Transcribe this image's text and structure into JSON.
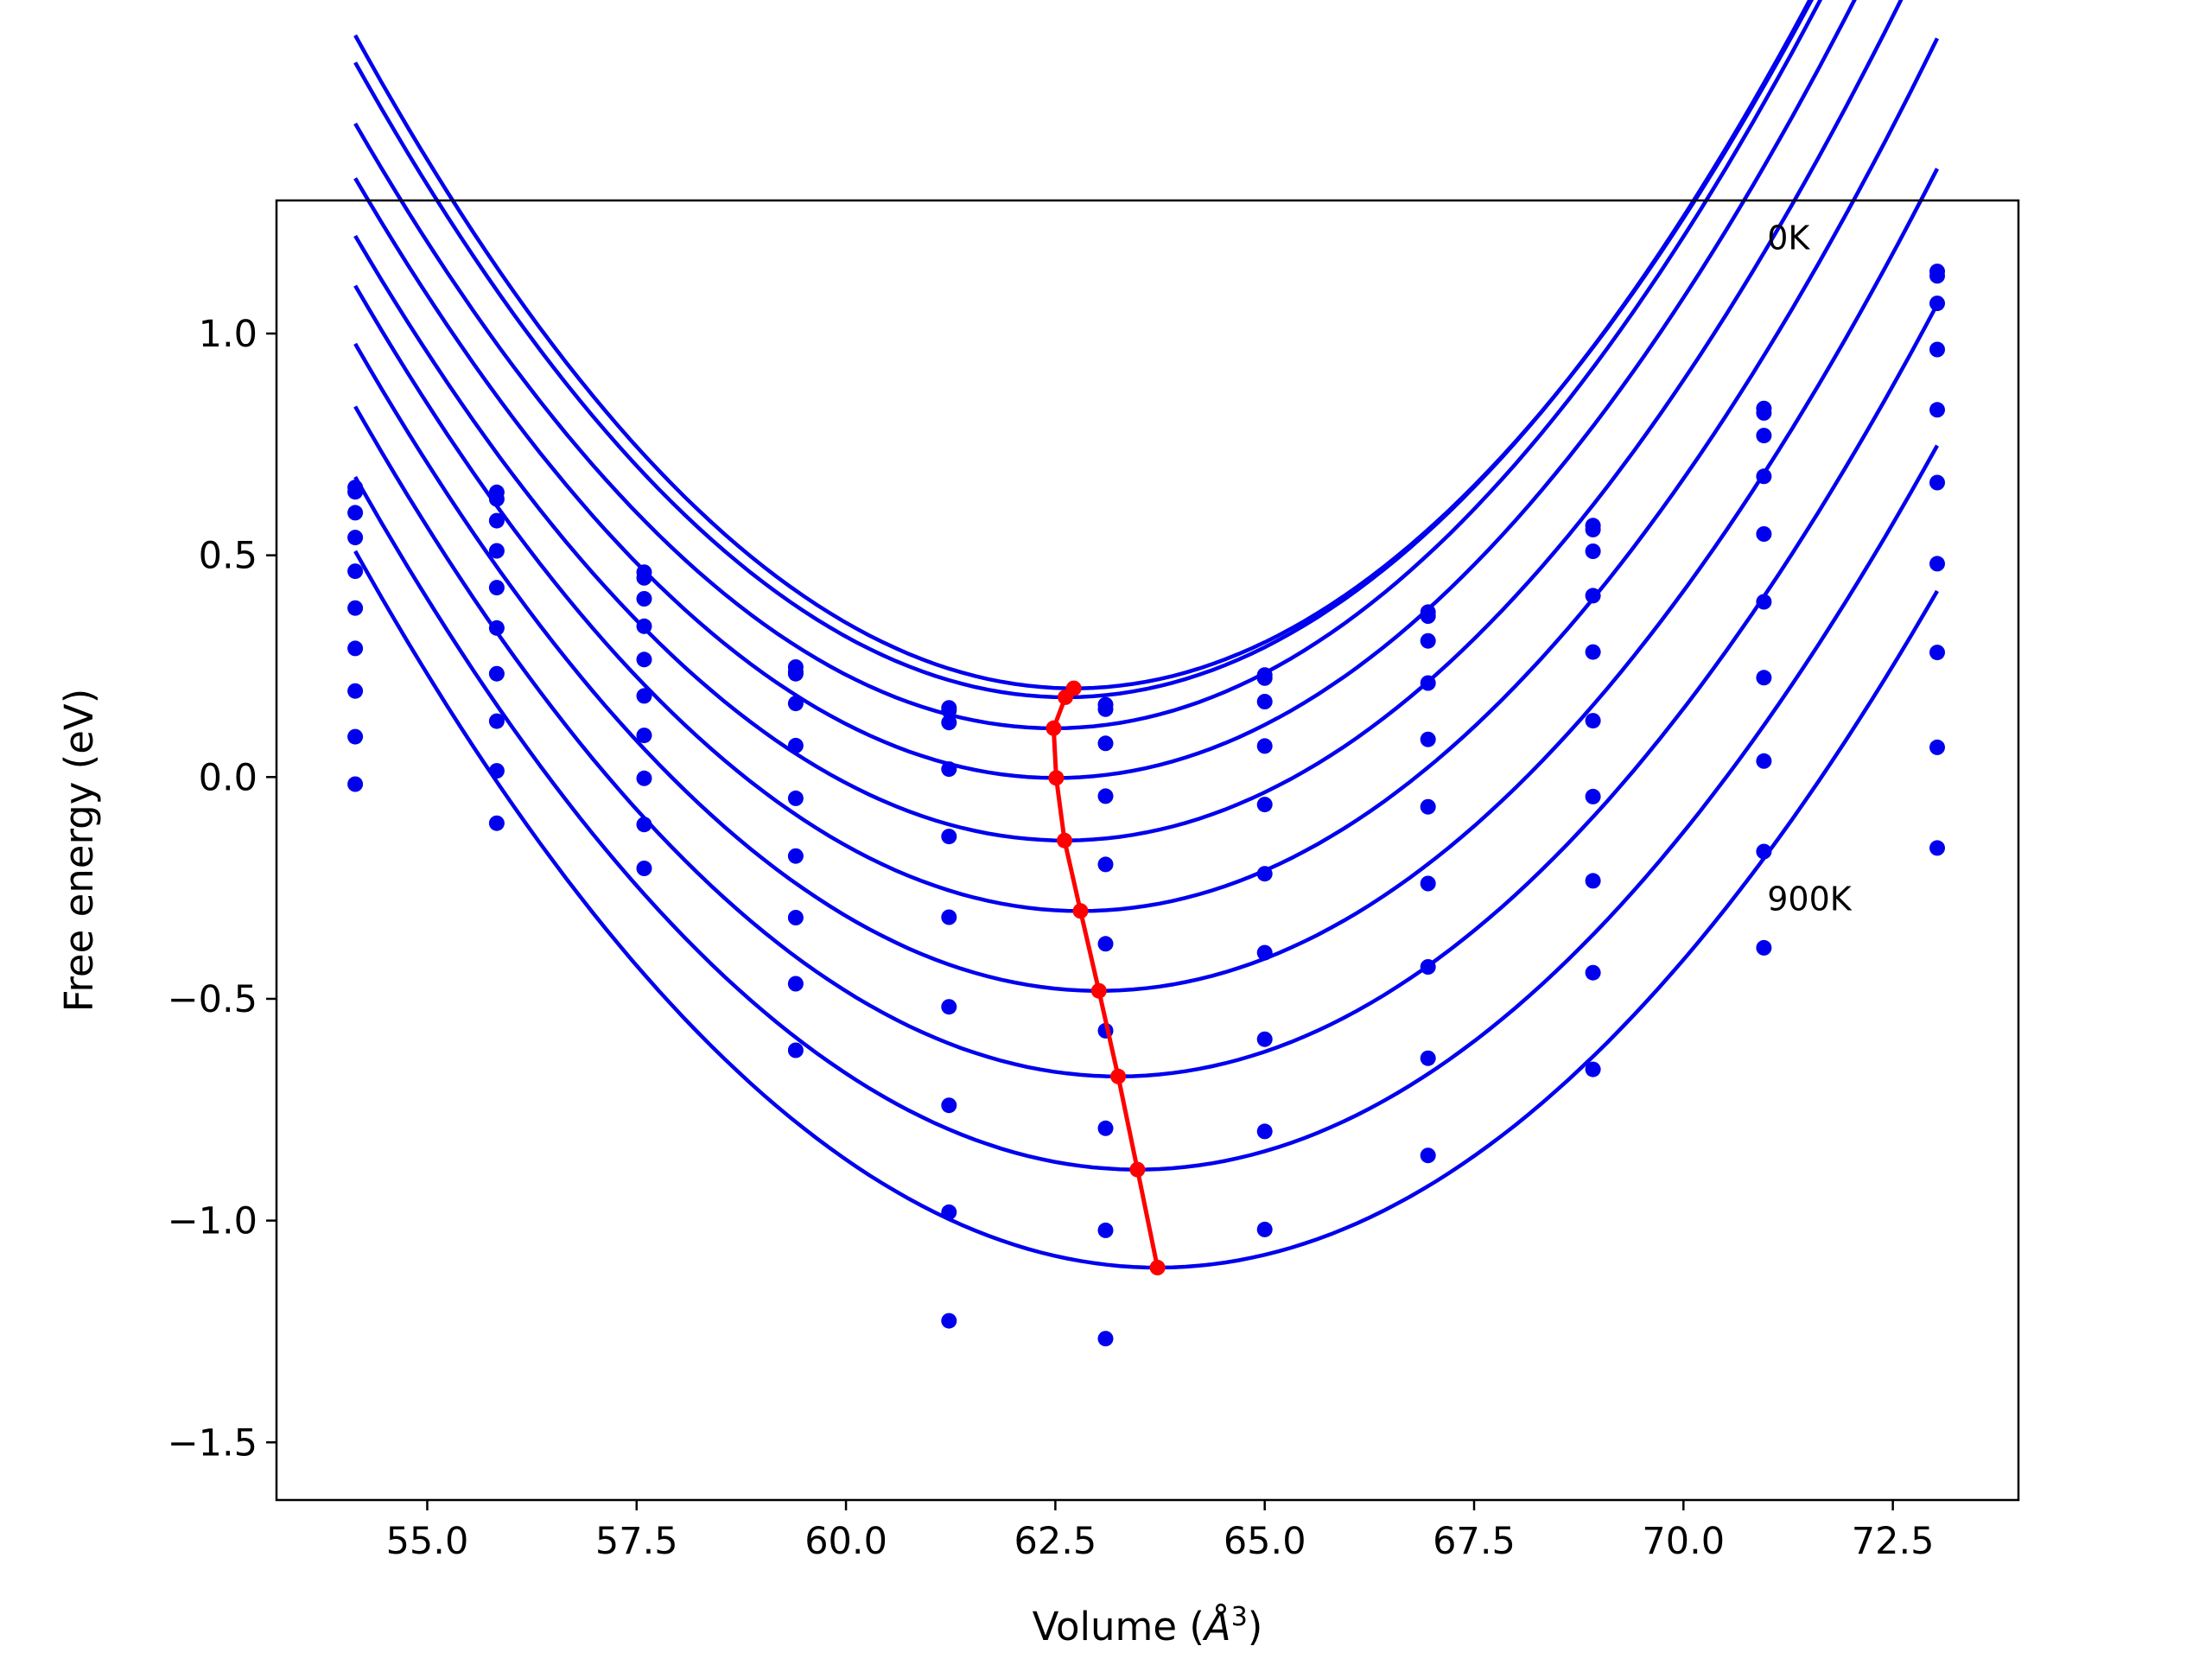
{
  "chart_data": {
    "type": "line",
    "xlabel": "Volume (",
    "xlabel_unit": "Å",
    "xlabel_exp": "3",
    "xlabel_close": ")",
    "ylabel": "Free energy (eV)",
    "xlim": [
      53.2,
      74.0
    ],
    "ylim": [
      -1.63,
      1.3
    ],
    "xticks": [
      55.0,
      57.5,
      60.0,
      62.5,
      65.0,
      67.5,
      70.0,
      72.5
    ],
    "xtick_labels": [
      "55.0",
      "57.5",
      "60.0",
      "62.5",
      "65.0",
      "67.5",
      "70.0",
      "72.5"
    ],
    "yticks": [
      -1.5,
      -1.0,
      -0.5,
      0.0,
      0.5,
      1.0
    ],
    "ytick_labels": [
      "−1.5",
      "−1.0",
      "−0.5",
      "0.0",
      "0.5",
      "1.0"
    ],
    "grid": false,
    "annotations": [
      {
        "text": "0K",
        "x": 71.0,
        "y": 1.19
      },
      {
        "text": "900K",
        "x": 71.0,
        "y": -0.3
      }
    ],
    "colors": {
      "fit_curves": "#0000ee",
      "points": "#0000ee",
      "minimum_line": "#ff0000"
    },
    "volumes": [
      54.14,
      55.83,
      57.59,
      59.4,
      61.23,
      63.1,
      65.0,
      66.95,
      68.92,
      70.96,
      73.03
    ],
    "series": [
      {
        "temperature_index": 0,
        "values": [
          0.653,
          0.642,
          0.462,
          0.248,
          0.156,
          0.163,
          0.23,
          0.372,
          0.567,
          0.831,
          1.14
        ]
      },
      {
        "temperature_index": 1,
        "values": [
          0.643,
          0.627,
          0.449,
          0.237,
          0.15,
          0.153,
          0.223,
          0.363,
          0.558,
          0.821,
          1.13
        ]
      },
      {
        "temperature_index": 2,
        "values": [
          0.596,
          0.578,
          0.402,
          0.233,
          0.123,
          0.076,
          0.17,
          0.307,
          0.509,
          0.77,
          1.068
        ]
      },
      {
        "temperature_index": 3,
        "values": [
          0.54,
          0.51,
          0.34,
          0.166,
          0.018,
          -0.043,
          0.07,
          0.212,
          0.409,
          0.678,
          0.964
        ]
      },
      {
        "temperature_index": 4,
        "values": [
          0.464,
          0.427,
          0.265,
          0.071,
          -0.134,
          -0.197,
          -0.062,
          0.085,
          0.282,
          0.548,
          0.828
        ]
      },
      {
        "temperature_index": 5,
        "values": [
          0.381,
          0.336,
          0.183,
          -0.048,
          -0.316,
          -0.376,
          -0.218,
          -0.067,
          0.127,
          0.395,
          0.664
        ]
      },
      {
        "temperature_index": 6,
        "values": [
          0.29,
          0.233,
          0.094,
          -0.178,
          -0.518,
          -0.572,
          -0.396,
          -0.24,
          -0.044,
          0.224,
          0.481
        ]
      },
      {
        "temperature_index": 7,
        "values": [
          0.194,
          0.126,
          -0.003,
          -0.317,
          -0.74,
          -0.792,
          -0.591,
          -0.428,
          -0.234,
          0.036,
          0.281
        ]
      },
      {
        "temperature_index": 8,
        "values": [
          0.091,
          0.014,
          -0.107,
          -0.466,
          -0.981,
          -1.022,
          -0.799,
          -0.634,
          -0.441,
          -0.168,
          0.067
        ]
      },
      {
        "temperature_index": 9,
        "values": [
          -0.016,
          -0.104,
          -0.206,
          -0.616,
          -1.226,
          -1.266,
          -1.02,
          -0.853,
          -0.659,
          -0.385,
          -0.16
        ]
      }
    ],
    "fit_minima": [
      {
        "v": 62.72,
        "e": 0.2
      },
      {
        "v": 62.62,
        "e": 0.18
      },
      {
        "v": 62.48,
        "e": 0.11
      },
      {
        "v": 62.51,
        "e": -0.002
      },
      {
        "v": 62.61,
        "e": -0.143
      },
      {
        "v": 62.8,
        "e": -0.302
      },
      {
        "v": 63.02,
        "e": -0.482
      },
      {
        "v": 63.25,
        "e": -0.675
      },
      {
        "v": 63.48,
        "e": -0.885
      },
      {
        "v": 63.72,
        "e": -1.106
      }
    ],
    "fit_curvature": [
      0.02,
      0.0199,
      0.0196,
      0.0193,
      0.019,
      0.0188,
      0.0185,
      0.0182,
      0.0179,
      0.0176
    ],
    "fit_range": [
      54.14,
      73.03
    ]
  }
}
